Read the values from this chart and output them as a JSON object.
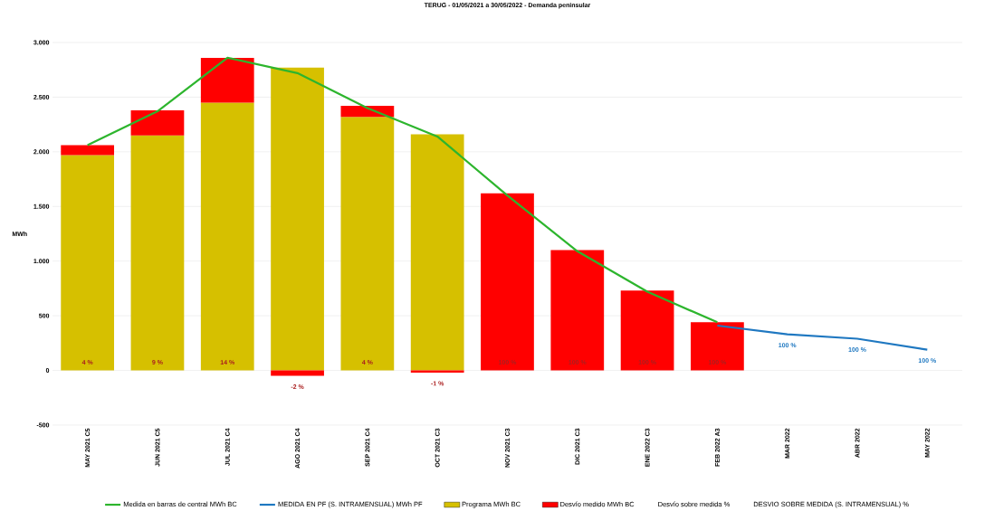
{
  "chart_data": {
    "type": "bar",
    "stacked": true,
    "title": "TERUG - 01/05/2021 a 30/05/2022 - Demanda peninsular",
    "ylabel": "MWh",
    "categories": [
      "MAY 2021 C5",
      "JUN 2021 C5",
      "JUL 2021 C4",
      "AGO 2021 C4",
      "SEP 2021 C4",
      "OCT 2021 C3",
      "NOV 2021 C3",
      "DIC 2021 C3",
      "ENE 2022 C3",
      "FEB 2022 A3",
      "MAR 2022",
      "ABR 2022",
      "MAY 2022"
    ],
    "series": [
      {
        "name": "Medida en barras de central MWh BC",
        "type": "line",
        "color": "#2db52d",
        "values": [
          2060,
          2370,
          2860,
          2720,
          2400,
          2140,
          1600,
          1090,
          720,
          440,
          null,
          null,
          null
        ]
      },
      {
        "name": "MEDIDA EN PF (S. INTRAMENSUAL) MWh PF",
        "type": "line",
        "color": "#1f78c1",
        "values": [
          null,
          null,
          null,
          null,
          null,
          null,
          null,
          null,
          null,
          410,
          330,
          290,
          190
        ]
      },
      {
        "name": "Programa MWh BC",
        "type": "bar",
        "color": "#d6c000",
        "values": [
          1970,
          2150,
          2450,
          2770,
          2320,
          2160,
          null,
          null,
          null,
          null,
          null,
          null,
          null
        ]
      },
      {
        "name": "Desvío medido MWh BC",
        "type": "bar",
        "color": "#ff0000",
        "values": [
          90,
          230,
          410,
          -50,
          100,
          -20,
          1620,
          1100,
          730,
          440,
          null,
          null,
          null
        ]
      }
    ],
    "annotations": [
      "Desvío sobre medida %",
      "DESVIO SOBRE MEDIDA (S. INTRAMENSUAL) %",
      {
        "text": "4 %",
        "x": "MAY 2021 C5",
        "y": 0
      },
      {
        "text": "9 %",
        "x": "JUN 2021 C5",
        "y": 0
      },
      {
        "text": "14 %",
        "x": "JUL 2021 C4",
        "y": 0
      },
      {
        "text": "-2 %",
        "x": "AGO 2021 C4",
        "y": -50
      },
      {
        "text": "4 %",
        "x": "SEP 2021 C4",
        "y": 0
      },
      {
        "text": "-1 %",
        "x": "OCT 2021 C3",
        "y": -20
      },
      {
        "text": "100 %",
        "x": "NOV 2021 C3",
        "y": 0
      },
      {
        "text": "100 %",
        "x": "DIC 2021 C3",
        "y": 0
      },
      {
        "text": "100 %",
        "x": "ENE 2022 C3",
        "y": 0
      },
      {
        "text": "100 %",
        "x": "FEB 2022 A3",
        "y": 0
      },
      {
        "text": "100 %",
        "x": "MAR 2022",
        "y": 330
      },
      {
        "text": "100 %",
        "x": "ABR 2022",
        "y": 290
      },
      {
        "text": "100 %",
        "x": "MAY 2022",
        "y": 190
      }
    ],
    "ylim": [
      -500,
      3000
    ],
    "yticks": [
      {
        "value": -500,
        "label": "-500"
      },
      {
        "value": 0,
        "label": "0"
      },
      {
        "value": 500,
        "label": "500"
      },
      {
        "value": 1000,
        "label": "1.000"
      },
      {
        "value": 1500,
        "label": "1.500"
      },
      {
        "value": 2000,
        "label": "2.000"
      },
      {
        "value": 2500,
        "label": "2.500"
      },
      {
        "value": 3000,
        "label": "3.000"
      }
    ],
    "grid": "y",
    "legend": "bottom"
  }
}
